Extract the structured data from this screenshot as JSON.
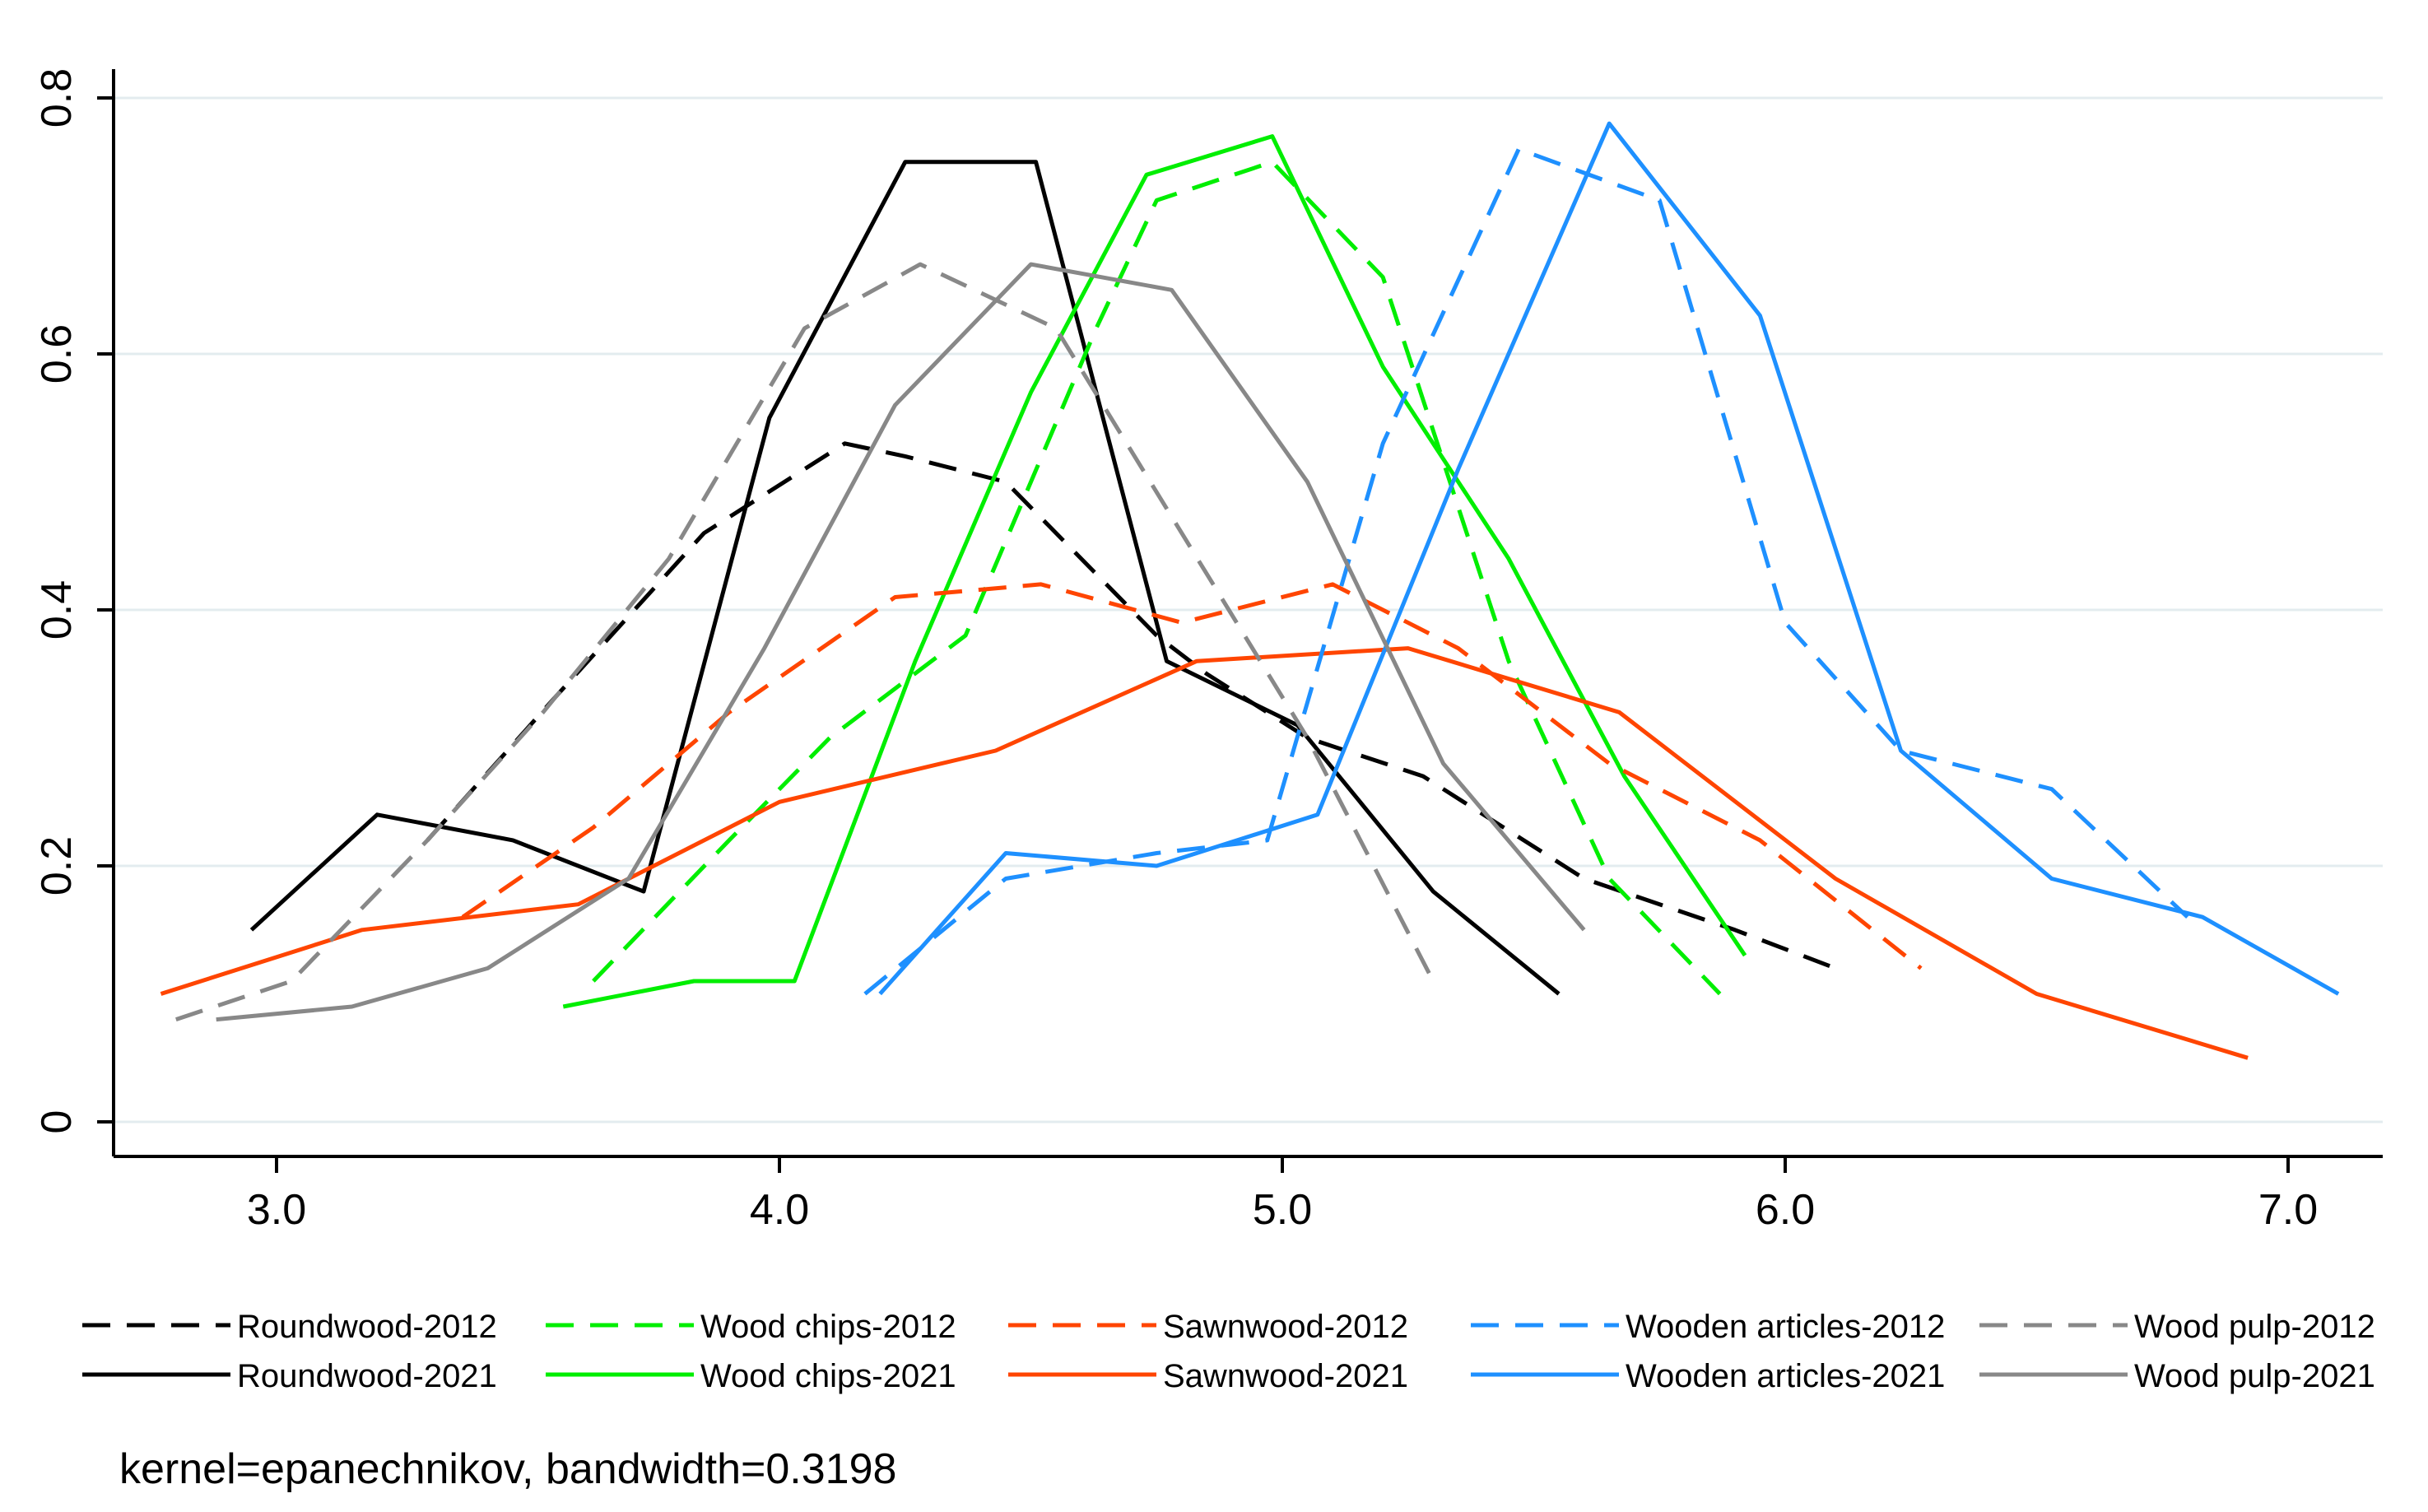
{
  "chart_data": {
    "type": "line",
    "title": "",
    "xlabel": "",
    "ylabel": "",
    "xlim": [
      2.7,
      7.2
    ],
    "ylim": [
      0,
      0.8
    ],
    "xticks": [
      3.0,
      4.0,
      5.0,
      6.0,
      7.0
    ],
    "xtick_labels": [
      "3.0",
      "4.0",
      "5.0",
      "6.0",
      "7.0"
    ],
    "yticks": [
      0,
      0.2,
      0.4,
      0.6,
      0.8
    ],
    "ytick_labels": [
      "0",
      "0.2",
      "0.4",
      "0.6",
      "0.8"
    ],
    "grid": "horizontal",
    "legend_position": "bottom",
    "series": [
      {
        "name": "Roundwood-2012",
        "color": "#000000",
        "style": "dashed",
        "x": [
          3.3,
          3.55,
          3.85,
          4.13,
          4.25,
          4.45,
          4.75,
          4.85,
          5.05,
          5.28,
          5.6,
          5.9,
          6.1
        ],
        "y": [
          0.22,
          0.33,
          0.46,
          0.53,
          0.52,
          0.5,
          0.38,
          0.35,
          0.3,
          0.27,
          0.19,
          0.15,
          0.12
        ]
      },
      {
        "name": "Roundwood-2021",
        "color": "#000000",
        "style": "solid",
        "x": [
          2.95,
          3.2,
          3.47,
          3.73,
          3.98,
          4.25,
          4.51,
          4.77,
          5.03,
          5.3,
          5.55
        ],
        "y": [
          0.15,
          0.24,
          0.22,
          0.18,
          0.55,
          0.75,
          0.75,
          0.36,
          0.31,
          0.18,
          0.1
        ]
      },
      {
        "name": "Wood chips-2012",
        "color": "#00ee00",
        "style": "dashed",
        "x": [
          3.63,
          3.9,
          4.1,
          4.37,
          4.63,
          4.75,
          4.98,
          5.2,
          5.45,
          5.65,
          5.87
        ],
        "y": [
          0.11,
          0.22,
          0.3,
          0.38,
          0.62,
          0.72,
          0.75,
          0.66,
          0.36,
          0.19,
          0.1
        ]
      },
      {
        "name": "Wood chips-2021",
        "color": "#00ee00",
        "style": "solid",
        "x": [
          3.57,
          3.83,
          4.03,
          4.27,
          4.5,
          4.73,
          4.98,
          5.2,
          5.45,
          5.68,
          5.92
        ],
        "y": [
          0.09,
          0.11,
          0.11,
          0.36,
          0.57,
          0.74,
          0.77,
          0.59,
          0.44,
          0.27,
          0.13
        ]
      },
      {
        "name": "Sawnwood-2012",
        "color": "#ff4500",
        "style": "dashed",
        "x": [
          3.37,
          3.63,
          3.9,
          4.23,
          4.52,
          4.8,
          5.1,
          5.35,
          5.65,
          5.95,
          6.27
        ],
        "y": [
          0.16,
          0.23,
          0.32,
          0.41,
          0.42,
          0.39,
          0.42,
          0.37,
          0.28,
          0.22,
          0.12
        ]
      },
      {
        "name": "Sawnwood-2021",
        "color": "#ff4500",
        "style": "solid",
        "x": [
          2.77,
          3.17,
          3.6,
          4.0,
          4.43,
          4.83,
          5.25,
          5.67,
          6.1,
          6.5,
          6.92
        ],
        "y": [
          0.1,
          0.15,
          0.17,
          0.25,
          0.29,
          0.36,
          0.37,
          0.32,
          0.19,
          0.1,
          0.05
        ]
      },
      {
        "name": "Wooden articles-2012",
        "color": "#1e90ff",
        "style": "dashed",
        "x": [
          4.17,
          4.45,
          4.75,
          4.97,
          5.2,
          5.47,
          5.75,
          6.0,
          6.23,
          6.53,
          6.8
        ],
        "y": [
          0.1,
          0.19,
          0.21,
          0.22,
          0.53,
          0.76,
          0.72,
          0.39,
          0.29,
          0.26,
          0.16
        ]
      },
      {
        "name": "Wooden articles-2021",
        "color": "#1e90ff",
        "style": "solid",
        "x": [
          4.2,
          4.45,
          4.75,
          5.07,
          5.35,
          5.65,
          5.95,
          6.23,
          6.53,
          6.83,
          7.1
        ],
        "y": [
          0.1,
          0.21,
          0.2,
          0.24,
          0.51,
          0.78,
          0.63,
          0.29,
          0.19,
          0.16,
          0.1
        ]
      },
      {
        "name": "Wood pulp-2012",
        "color": "#888888",
        "style": "dashed",
        "x": [
          2.8,
          3.03,
          3.3,
          3.53,
          3.78,
          4.05,
          4.28,
          4.55,
          4.8,
          5.05,
          5.3
        ],
        "y": [
          0.08,
          0.11,
          0.22,
          0.32,
          0.44,
          0.62,
          0.67,
          0.62,
          0.46,
          0.3,
          0.11
        ]
      },
      {
        "name": "Wood pulp-2021",
        "color": "#888888",
        "style": "solid",
        "x": [
          2.88,
          3.15,
          3.42,
          3.7,
          3.97,
          4.23,
          4.5,
          4.78,
          5.05,
          5.32,
          5.6
        ],
        "y": [
          0.08,
          0.09,
          0.12,
          0.19,
          0.37,
          0.56,
          0.67,
          0.65,
          0.5,
          0.28,
          0.15
        ]
      }
    ],
    "legend_order": [
      0,
      2,
      4,
      6,
      8,
      1,
      3,
      5,
      7,
      9
    ],
    "note": "kernel=epanechnikov, bandwidth=0.3198"
  }
}
